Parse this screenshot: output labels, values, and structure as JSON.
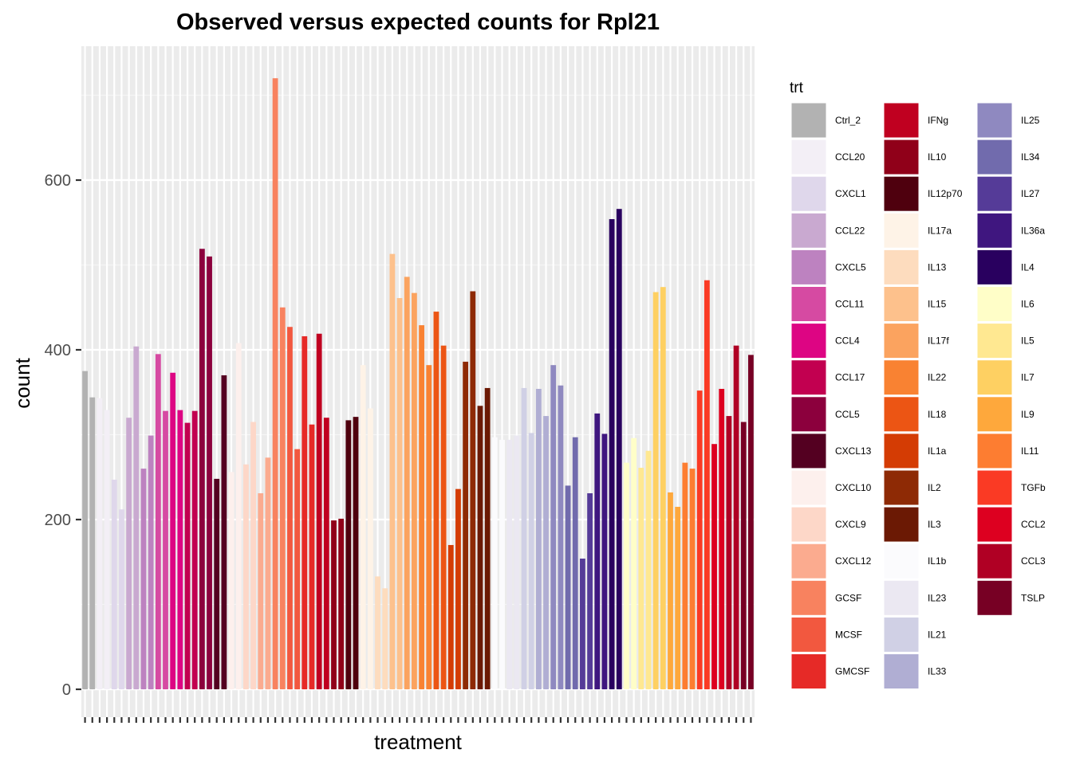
{
  "chart_data": {
    "type": "bar",
    "title": "Observed versus expected counts for Rpl21",
    "xlabel": "treatment",
    "ylabel": "count",
    "ylim": [
      0,
      740
    ],
    "yticks": [
      0,
      200,
      400,
      600
    ],
    "grid": true,
    "legend_title": "trt",
    "legend_position": "right",
    "groups": [
      {
        "name": "Ctrl_2",
        "color": "#b2b2b2",
        "values": [
          375,
          344
        ]
      },
      {
        "name": "CCL20",
        "color": "#f3eff6",
        "values": [
          343,
          329
        ]
      },
      {
        "name": "CXCL1",
        "color": "#dfd7eb",
        "values": [
          247,
          212
        ]
      },
      {
        "name": "CCL22",
        "color": "#c9a9d0",
        "values": [
          320,
          404
        ]
      },
      {
        "name": "CXCL5",
        "color": "#bd82c0",
        "values": [
          260,
          299
        ]
      },
      {
        "name": "CCL11",
        "color": "#d64aa2",
        "values": [
          395,
          328
        ]
      },
      {
        "name": "CCL4",
        "color": "#dd0583",
        "values": [
          373,
          329
        ]
      },
      {
        "name": "CCL17",
        "color": "#c20050",
        "values": [
          314,
          328
        ]
      },
      {
        "name": "CCL5",
        "color": "#8c003d",
        "values": [
          519,
          510
        ]
      },
      {
        "name": "CXCL13",
        "color": "#540021",
        "values": [
          248,
          370
        ]
      },
      {
        "name": "CXCL10",
        "color": "#fdf0ed",
        "values": [
          256,
          408
        ]
      },
      {
        "name": "CXCL9",
        "color": "#fdd7c8",
        "values": [
          265,
          315
        ]
      },
      {
        "name": "CXCL12",
        "color": "#fbab8f",
        "values": [
          231,
          273
        ]
      },
      {
        "name": "GCSF",
        "color": "#f8825f",
        "values": [
          720,
          450
        ]
      },
      {
        "name": "MCSF",
        "color": "#f2583f",
        "values": [
          427,
          283
        ]
      },
      {
        "name": "GMCSF",
        "color": "#e62a27",
        "values": [
          416,
          312
        ]
      },
      {
        "name": "IFNg",
        "color": "#c00020",
        "values": [
          419,
          320
        ]
      },
      {
        "name": "IL10",
        "color": "#900019",
        "values": [
          199,
          201
        ]
      },
      {
        "name": "IL12p70",
        "color": "#4f000e",
        "values": [
          317,
          321
        ]
      },
      {
        "name": "IL17a",
        "color": "#fef3e7",
        "values": [
          382,
          331
        ]
      },
      {
        "name": "IL13",
        "color": "#fddcbe",
        "values": [
          133,
          119
        ]
      },
      {
        "name": "IL15",
        "color": "#fdc18c",
        "values": [
          513,
          461
        ]
      },
      {
        "name": "IL17f",
        "color": "#fba35f",
        "values": [
          486,
          467
        ]
      },
      {
        "name": "IL22",
        "color": "#f98232",
        "values": [
          429,
          382
        ]
      },
      {
        "name": "IL18",
        "color": "#ec5514",
        "values": [
          445,
          405
        ]
      },
      {
        "name": "IL1a",
        "color": "#d43c04",
        "values": [
          170,
          236
        ]
      },
      {
        "name": "IL2",
        "color": "#8e2a05",
        "values": [
          386,
          469
        ]
      },
      {
        "name": "IL3",
        "color": "#6b1904",
        "values": [
          334,
          355
        ]
      },
      {
        "name": "IL1b",
        "color": "#fbfbfd",
        "values": [
          297,
          294
        ]
      },
      {
        "name": "IL23",
        "color": "#ebe8f2",
        "values": [
          294,
          299
        ]
      },
      {
        "name": "IL21",
        "color": "#d0d0e5",
        "values": [
          355,
          302
        ]
      },
      {
        "name": "IL33",
        "color": "#b0aed3",
        "values": [
          354,
          322
        ]
      },
      {
        "name": "IL25",
        "color": "#8f89c0",
        "values": [
          382,
          358
        ]
      },
      {
        "name": "IL34",
        "color": "#716bad",
        "values": [
          240,
          297
        ]
      },
      {
        "name": "IL27",
        "color": "#553b98",
        "values": [
          154,
          231
        ]
      },
      {
        "name": "IL36a",
        "color": "#3f167f",
        "values": [
          325,
          301
        ]
      },
      {
        "name": "IL4",
        "color": "#29005f",
        "values": [
          554,
          566
        ]
      },
      {
        "name": "IL6",
        "color": "#fffec8",
        "values": [
          267,
          296
        ]
      },
      {
        "name": "IL5",
        "color": "#ffe891",
        "values": [
          261,
          281
        ]
      },
      {
        "name": "IL7",
        "color": "#fed062",
        "values": [
          468,
          474
        ]
      },
      {
        "name": "IL9",
        "color": "#fea83c",
        "values": [
          232,
          215
        ]
      },
      {
        "name": "IL11",
        "color": "#fd7d31",
        "values": [
          267,
          260
        ]
      },
      {
        "name": "TGFb",
        "color": "#fa3a24",
        "values": [
          352,
          482
        ]
      },
      {
        "name": "CCL2",
        "color": "#dd0020",
        "values": [
          289,
          354
        ]
      },
      {
        "name": "CCL3",
        "color": "#b00024",
        "values": [
          322,
          405
        ]
      },
      {
        "name": "TSLP",
        "color": "#770024",
        "values": [
          315,
          394
        ]
      }
    ]
  }
}
